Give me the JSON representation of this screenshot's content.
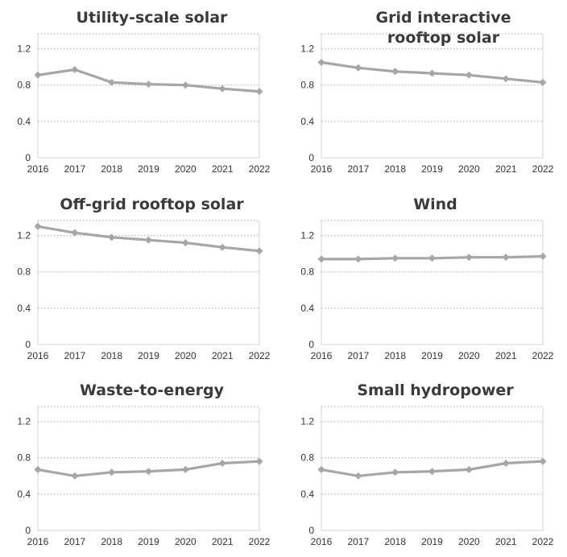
{
  "colors": {
    "series": "#a6a6a6",
    "grid": "#a6a6a6",
    "text": "#333333"
  },
  "chart_data": [
    {
      "type": "line",
      "title": "Utility-scale solar",
      "x": [
        "2016",
        "2017",
        "2018",
        "2019",
        "2020",
        "2021",
        "2022"
      ],
      "values": [
        0.91,
        0.97,
        0.83,
        0.81,
        0.8,
        0.76,
        0.73
      ],
      "yticks": [
        "0",
        "0.4",
        "0.8",
        "1.2"
      ],
      "ylim": [
        0,
        1.4
      ],
      "grid": true,
      "marker": "diamond"
    },
    {
      "type": "line",
      "title": "Grid interactive rooftop solar",
      "title_lines": [
        "Grid interactive",
        "rooftop solar"
      ],
      "x": [
        "2016",
        "2017",
        "2018",
        "2019",
        "2020",
        "2021",
        "2022"
      ],
      "values": [
        1.05,
        0.99,
        0.95,
        0.93,
        0.91,
        0.87,
        0.83
      ],
      "yticks": [
        "0",
        "0.4",
        "0.8",
        "1.2"
      ],
      "ylim": [
        0,
        1.4
      ],
      "grid": true,
      "marker": "diamond"
    },
    {
      "type": "line",
      "title": "Off-grid rooftop solar",
      "x": [
        "2016",
        "2017",
        "2018",
        "2019",
        "2020",
        "2021",
        "2022"
      ],
      "values": [
        1.3,
        1.23,
        1.18,
        1.15,
        1.12,
        1.07,
        1.03
      ],
      "yticks": [
        "0",
        "0.4",
        "0.8",
        "1.2"
      ],
      "ylim": [
        0,
        1.4
      ],
      "grid": true,
      "marker": "diamond"
    },
    {
      "type": "line",
      "title": "Wind",
      "x": [
        "2016",
        "2017",
        "2018",
        "2019",
        "2020",
        "2021",
        "2022"
      ],
      "values": [
        0.94,
        0.94,
        0.95,
        0.95,
        0.96,
        0.96,
        0.97
      ],
      "yticks": [
        "0",
        "0.4",
        "0.8",
        "1.2"
      ],
      "ylim": [
        0,
        1.4
      ],
      "grid": true,
      "marker": "diamond"
    },
    {
      "type": "line",
      "title": "Waste-to-energy",
      "x": [
        "2016",
        "2017",
        "2018",
        "2019",
        "2020",
        "2021",
        "2022"
      ],
      "values": [
        0.67,
        0.6,
        0.64,
        0.65,
        0.67,
        0.74,
        0.76
      ],
      "yticks": [
        "0",
        "0.4",
        "0.8",
        "1.2"
      ],
      "ylim": [
        0,
        1.4
      ],
      "grid": true,
      "marker": "diamond"
    },
    {
      "type": "line",
      "title": "Small hydropower",
      "x": [
        "2016",
        "2017",
        "2018",
        "2019",
        "2020",
        "2021",
        "2022"
      ],
      "values": [
        0.67,
        0.6,
        0.64,
        0.65,
        0.67,
        0.74,
        0.76
      ],
      "yticks": [
        "0",
        "0.4",
        "0.8",
        "1.2"
      ],
      "ylim": [
        0,
        1.4
      ],
      "grid": true,
      "marker": "diamond"
    }
  ]
}
